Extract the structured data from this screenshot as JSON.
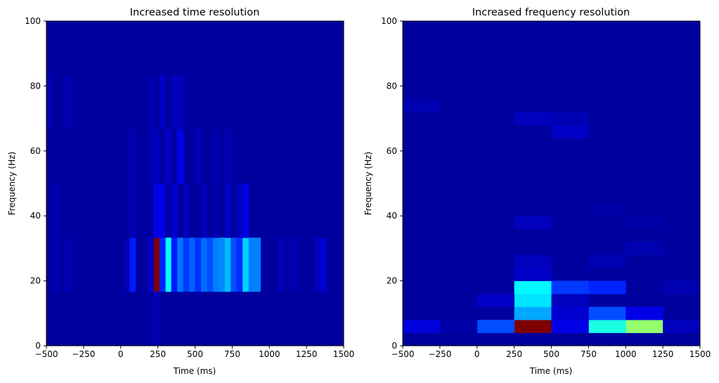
{
  "chart_data": [
    {
      "type": "heatmap",
      "title": "Increased time resolution",
      "xlabel": "Time (ms)",
      "ylabel": "Frequency (Hz)",
      "xlim": [
        -500,
        1500
      ],
      "ylim": [
        0,
        100
      ],
      "xticks": [
        -500,
        -250,
        0,
        250,
        500,
        750,
        1000,
        1250,
        1500
      ],
      "yticks": [
        0,
        20,
        40,
        60,
        80,
        100
      ],
      "grid": false,
      "colormap": "jet",
      "x_bin_width": 40,
      "y_bin_edges": [
        0,
        16.7,
        33.3,
        50,
        66.7,
        83.3,
        100
      ],
      "background_value": 0.03,
      "cells": [
        {
          "x0": 220,
          "x1": 260,
          "y0": 16.7,
          "y1": 33.3,
          "v": 1.0
        },
        {
          "x0": 300,
          "x1": 340,
          "y0": 16.7,
          "y1": 33.3,
          "v": 0.38
        },
        {
          "x0": 260,
          "x1": 300,
          "y0": 16.7,
          "y1": 33.3,
          "v": 0.16
        },
        {
          "x0": 340,
          "x1": 380,
          "y0": 16.7,
          "y1": 33.3,
          "v": 0.15
        },
        {
          "x0": 380,
          "x1": 420,
          "y0": 16.7,
          "y1": 33.3,
          "v": 0.24
        },
        {
          "x0": 420,
          "x1": 460,
          "y0": 16.7,
          "y1": 33.3,
          "v": 0.18
        },
        {
          "x0": 460,
          "x1": 500,
          "y0": 16.7,
          "y1": 33.3,
          "v": 0.22
        },
        {
          "x0": 500,
          "x1": 540,
          "y0": 16.7,
          "y1": 33.3,
          "v": 0.17
        },
        {
          "x0": 540,
          "x1": 580,
          "y0": 16.7,
          "y1": 33.3,
          "v": 0.23
        },
        {
          "x0": 580,
          "x1": 620,
          "y0": 16.7,
          "y1": 33.3,
          "v": 0.2
        },
        {
          "x0": 620,
          "x1": 660,
          "y0": 16.7,
          "y1": 33.3,
          "v": 0.25
        },
        {
          "x0": 660,
          "x1": 700,
          "y0": 16.7,
          "y1": 33.3,
          "v": 0.26
        },
        {
          "x0": 700,
          "x1": 740,
          "y0": 16.7,
          "y1": 33.3,
          "v": 0.31
        },
        {
          "x0": 740,
          "x1": 780,
          "y0": 16.7,
          "y1": 33.3,
          "v": 0.2
        },
        {
          "x0": 780,
          "x1": 820,
          "y0": 16.7,
          "y1": 33.3,
          "v": 0.17
        },
        {
          "x0": 820,
          "x1": 860,
          "y0": 16.7,
          "y1": 33.3,
          "v": 0.33
        },
        {
          "x0": 860,
          "x1": 900,
          "y0": 16.7,
          "y1": 33.3,
          "v": 0.25
        },
        {
          "x0": 900,
          "x1": 940,
          "y0": 16.7,
          "y1": 33.3,
          "v": 0.25
        },
        {
          "x0": 20,
          "x1": 60,
          "y0": 16.7,
          "y1": 33.3,
          "v": 0.05
        },
        {
          "x0": 60,
          "x1": 100,
          "y0": 16.7,
          "y1": 33.3,
          "v": 0.15
        },
        {
          "x0": 180,
          "x1": 220,
          "y0": 16.7,
          "y1": 33.3,
          "v": 0.07
        },
        {
          "x0": 1060,
          "x1": 1100,
          "y0": 16.7,
          "y1": 33.3,
          "v": 0.06
        },
        {
          "x0": 1140,
          "x1": 1180,
          "y0": 16.7,
          "y1": 33.3,
          "v": 0.05
        },
        {
          "x0": 1300,
          "x1": 1340,
          "y0": 16.7,
          "y1": 33.3,
          "v": 0.06
        },
        {
          "x0": 1340,
          "x1": 1380,
          "y0": 16.7,
          "y1": 33.3,
          "v": 0.08
        },
        {
          "x0": -460,
          "x1": -420,
          "y0": 16.7,
          "y1": 33.3,
          "v": 0.05
        },
        {
          "x0": -380,
          "x1": -340,
          "y0": 16.7,
          "y1": 33.3,
          "v": 0.05
        },
        {
          "x0": 220,
          "x1": 300,
          "y0": 33.3,
          "y1": 50,
          "v": 0.1
        },
        {
          "x0": 340,
          "x1": 380,
          "y0": 33.3,
          "y1": 50,
          "v": 0.08
        },
        {
          "x0": 420,
          "x1": 460,
          "y0": 33.3,
          "y1": 50,
          "v": 0.06
        },
        {
          "x0": 540,
          "x1": 580,
          "y0": 33.3,
          "y1": 50,
          "v": 0.06
        },
        {
          "x0": 620,
          "x1": 660,
          "y0": 33.3,
          "y1": 50,
          "v": 0.05
        },
        {
          "x0": 700,
          "x1": 740,
          "y0": 33.3,
          "y1": 50,
          "v": 0.07
        },
        {
          "x0": 780,
          "x1": 820,
          "y0": 33.3,
          "y1": 50,
          "v": 0.06
        },
        {
          "x0": 820,
          "x1": 860,
          "y0": 33.3,
          "y1": 50,
          "v": 0.1
        },
        {
          "x0": 60,
          "x1": 100,
          "y0": 33.3,
          "y1": 50,
          "v": 0.05
        },
        {
          "x0": -460,
          "x1": -420,
          "y0": 33.3,
          "y1": 50,
          "v": 0.05
        },
        {
          "x0": 220,
          "x1": 260,
          "y0": 50,
          "y1": 66.7,
          "v": 0.06
        },
        {
          "x0": 300,
          "x1": 340,
          "y0": 50,
          "y1": 66.7,
          "v": 0.07
        },
        {
          "x0": 380,
          "x1": 420,
          "y0": 50,
          "y1": 66.7,
          "v": 0.11
        },
        {
          "x0": 500,
          "x1": 540,
          "y0": 50,
          "y1": 66.7,
          "v": 0.06
        },
        {
          "x0": 620,
          "x1": 660,
          "y0": 50,
          "y1": 66.7,
          "v": 0.05
        },
        {
          "x0": 700,
          "x1": 740,
          "y0": 50,
          "y1": 66.7,
          "v": 0.05
        },
        {
          "x0": 180,
          "x1": 220,
          "y0": 50,
          "y1": 66.7,
          "v": 0.05
        },
        {
          "x0": 60,
          "x1": 100,
          "y0": 50,
          "y1": 66.7,
          "v": 0.05
        },
        {
          "x0": 260,
          "x1": 300,
          "y0": 66.7,
          "y1": 83.3,
          "v": 0.07
        },
        {
          "x0": 340,
          "x1": 380,
          "y0": 66.7,
          "y1": 83.3,
          "v": 0.06
        },
        {
          "x0": 380,
          "x1": 420,
          "y0": 66.7,
          "y1": 83.3,
          "v": 0.06
        },
        {
          "x0": 180,
          "x1": 220,
          "y0": 66.7,
          "y1": 83.3,
          "v": 0.05
        },
        {
          "x0": -500,
          "x1": -460,
          "y0": 66.7,
          "y1": 83.3,
          "v": 0.05
        },
        {
          "x0": -380,
          "x1": -340,
          "y0": 66.7,
          "y1": 83.3,
          "v": 0.05
        },
        {
          "x0": 220,
          "x1": 260,
          "y0": 0,
          "y1": 16.7,
          "v": 0.05
        }
      ]
    },
    {
      "type": "heatmap",
      "title": "Increased frequency resolution",
      "xlabel": "Time (ms)",
      "ylabel": "Frequency (Hz)",
      "xlim": [
        -500,
        1500
      ],
      "ylim": [
        0,
        100
      ],
      "xticks": [
        -500,
        -250,
        0,
        250,
        500,
        750,
        1000,
        1250,
        1500
      ],
      "yticks": [
        0,
        20,
        40,
        60,
        80,
        100
      ],
      "grid": false,
      "colormap": "jet",
      "x_bin_width": 250,
      "y_bin_height": 4,
      "background_value": 0.03,
      "cells": [
        {
          "x0": 250,
          "x1": 500,
          "y0": 4,
          "y1": 8,
          "v": 1.0
        },
        {
          "x0": 1000,
          "x1": 1250,
          "y0": 4,
          "y1": 8,
          "v": 0.52
        },
        {
          "x0": 750,
          "x1": 1000,
          "y0": 4,
          "y1": 8,
          "v": 0.4
        },
        {
          "x0": 0,
          "x1": 250,
          "y0": 4,
          "y1": 8,
          "v": 0.2
        },
        {
          "x0": 500,
          "x1": 750,
          "y0": 4,
          "y1": 8,
          "v": 0.1
        },
        {
          "x0": -500,
          "x1": -250,
          "y0": 4,
          "y1": 8,
          "v": 0.09
        },
        {
          "x0": 1250,
          "x1": 1500,
          "y0": 4,
          "y1": 8,
          "v": 0.06
        },
        {
          "x0": -250,
          "x1": 0,
          "y0": 4,
          "y1": 8,
          "v": 0.04
        },
        {
          "x0": 250,
          "x1": 500,
          "y0": 8,
          "y1": 12,
          "v": 0.29
        },
        {
          "x0": 750,
          "x1": 1000,
          "y0": 8,
          "y1": 12,
          "v": 0.2
        },
        {
          "x0": 1000,
          "x1": 1250,
          "y0": 8,
          "y1": 12,
          "v": 0.1
        },
        {
          "x0": 500,
          "x1": 750,
          "y0": 8,
          "y1": 12,
          "v": 0.08
        },
        {
          "x0": 250,
          "x1": 500,
          "y0": 12,
          "y1": 16,
          "v": 0.35
        },
        {
          "x0": 0,
          "x1": 250,
          "y0": 12,
          "y1": 16,
          "v": 0.07
        },
        {
          "x0": 500,
          "x1": 750,
          "y0": 12,
          "y1": 16,
          "v": 0.06
        },
        {
          "x0": 250,
          "x1": 500,
          "y0": 16,
          "y1": 20,
          "v": 0.37
        },
        {
          "x0": 500,
          "x1": 750,
          "y0": 16,
          "y1": 20,
          "v": 0.18
        },
        {
          "x0": 750,
          "x1": 1000,
          "y0": 16,
          "y1": 20,
          "v": 0.16
        },
        {
          "x0": 1250,
          "x1": 1500,
          "y0": 16,
          "y1": 20,
          "v": 0.05
        },
        {
          "x0": 250,
          "x1": 500,
          "y0": 20,
          "y1": 24,
          "v": 0.07
        },
        {
          "x0": 250,
          "x1": 500,
          "y0": 24,
          "y1": 28,
          "v": 0.06
        },
        {
          "x0": 750,
          "x1": 1000,
          "y0": 24,
          "y1": 28,
          "v": 0.05
        },
        {
          "x0": 1000,
          "x1": 1250,
          "y0": 28,
          "y1": 32,
          "v": 0.05
        },
        {
          "x0": 250,
          "x1": 500,
          "y0": 36,
          "y1": 40,
          "v": 0.06
        },
        {
          "x0": 1000,
          "x1": 1250,
          "y0": 36,
          "y1": 40,
          "v": 0.04
        },
        {
          "x0": 750,
          "x1": 1000,
          "y0": 40,
          "y1": 44,
          "v": 0.04
        },
        {
          "x0": 500,
          "x1": 750,
          "y0": 64,
          "y1": 68,
          "v": 0.07
        },
        {
          "x0": 500,
          "x1": 750,
          "y0": 68,
          "y1": 72,
          "v": 0.05
        },
        {
          "x0": 250,
          "x1": 500,
          "y0": 68,
          "y1": 72,
          "v": 0.06
        },
        {
          "x0": -500,
          "x1": -250,
          "y0": 72,
          "y1": 76,
          "v": 0.05
        }
      ]
    }
  ]
}
